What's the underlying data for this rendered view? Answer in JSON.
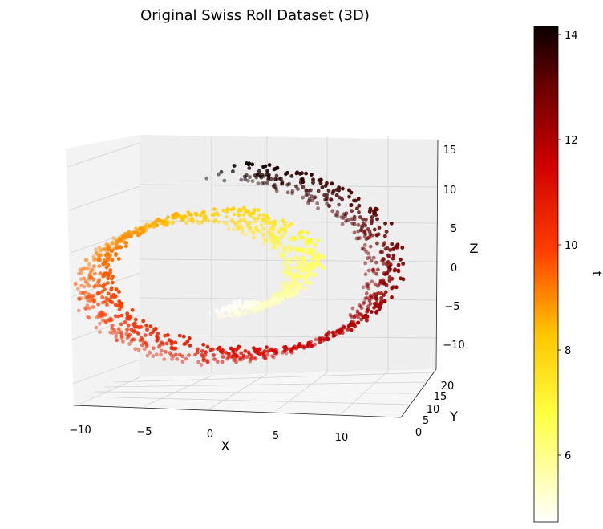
{
  "chart_data": {
    "type": "scatter",
    "title": "Original Swiss Roll Dataset (3D)",
    "projection": "3d",
    "xlabel": "X",
    "ylabel": "Y",
    "zlabel": "Z",
    "xticks": [
      "−10",
      "−5",
      "0",
      "5",
      "10"
    ],
    "yticks": [
      "0",
      "5",
      "10",
      "15",
      "20"
    ],
    "zticks": [
      "15",
      "10",
      "5",
      "0",
      "−5",
      "−10"
    ],
    "xlim": [
      -11,
      14
    ],
    "ylim": [
      0,
      21
    ],
    "zlim": [
      -13,
      15
    ],
    "colorbar": {
      "label": "t",
      "colormap": "hot_r",
      "ticks": [
        "14",
        "12",
        "10",
        "8",
        "6"
      ],
      "range": [
        4.7,
        14.1
      ]
    },
    "roll": {
      "t_min": 4.71,
      "t_max": 14.14,
      "x_formula": "t*cos(t)",
      "z_formula": "t*sin(t)",
      "y_range": [
        0,
        21
      ],
      "n_points": 1500
    },
    "grid": true,
    "colors": {
      "pane_back": "#eeeeee",
      "pane_side": "#f3f3f3",
      "pane_floor": "#f6f6f6",
      "grid": "#d2d2d2"
    }
  }
}
